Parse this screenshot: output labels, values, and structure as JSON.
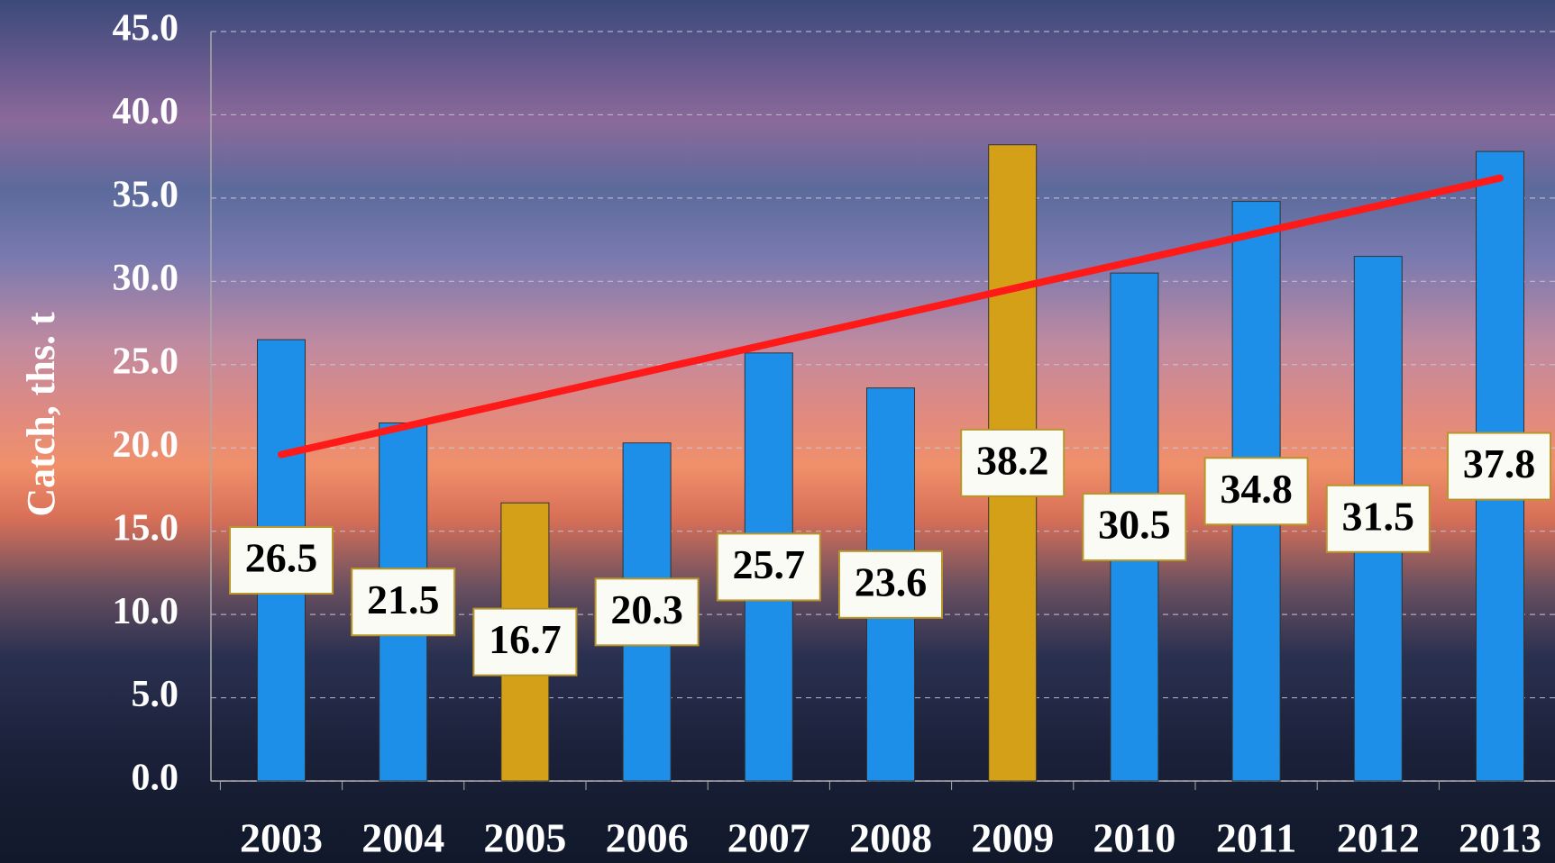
{
  "chart_data": {
    "type": "bar",
    "y_label": "Catch, ths. t",
    "categories": [
      "2003",
      "2004",
      "2005",
      "2006",
      "2007",
      "2008",
      "2009",
      "2010",
      "2011",
      "2012",
      "2013"
    ],
    "values": [
      26.5,
      21.5,
      16.7,
      20.3,
      25.7,
      23.6,
      38.2,
      30.5,
      34.8,
      31.5,
      37.8
    ],
    "colors": [
      "#1e8fe8",
      "#1e8fe8",
      "#d4a017",
      "#1e8fe8",
      "#1e8fe8",
      "#1e8fe8",
      "#d4a017",
      "#1e8fe8",
      "#1e8fe8",
      "#1e8fe8",
      "#1e8fe8"
    ],
    "ylim": [
      0,
      45
    ],
    "yticks": [
      {
        "value": 0,
        "label": "0.0"
      },
      {
        "value": 5,
        "label": "5.0"
      },
      {
        "value": 10,
        "label": "10.0"
      },
      {
        "value": 15,
        "label": "15.0"
      },
      {
        "value": 20,
        "label": "20.0"
      },
      {
        "value": 25,
        "label": "25.0"
      },
      {
        "value": 30,
        "label": "30.0"
      },
      {
        "value": 35,
        "label": "35.0"
      },
      {
        "value": 40,
        "label": "40.0"
      },
      {
        "value": 45,
        "label": "45.0"
      }
    ],
    "grid": true,
    "trendline": {
      "color": "#ff1a1a",
      "start": 19.6,
      "end": 36.2
    }
  }
}
